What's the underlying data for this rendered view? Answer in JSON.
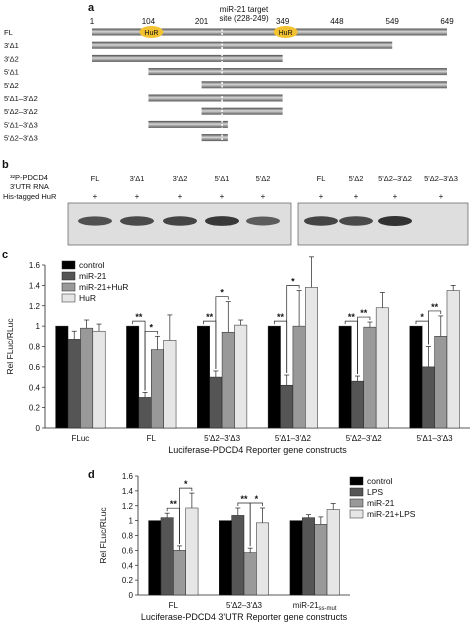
{
  "panel_a": {
    "letter": "a",
    "positions": [
      "1",
      "104",
      "201",
      "349",
      "448",
      "549",
      "649"
    ],
    "mir_label_line1": "miR-21  target",
    "mir_label_line2": "site  (228-249)",
    "hur_label": "HuR",
    "constructs": [
      {
        "name": "FL",
        "start": 1,
        "end": 649
      },
      {
        "name": "3'Δ1",
        "start": 1,
        "end": 549
      },
      {
        "name": "3'Δ2",
        "start": 1,
        "end": 349
      },
      {
        "name": "5'Δ1",
        "start": 104,
        "end": 649
      },
      {
        "name": "5'Δ2",
        "start": 201,
        "end": 649
      },
      {
        "name": "5'Δ1–3'Δ2",
        "start": 104,
        "end": 349
      },
      {
        "name": "5'Δ2–3'Δ2",
        "start": 201,
        "end": 349
      },
      {
        "name": "5'Δ1–3'Δ3",
        "start": 104,
        "end": 249
      },
      {
        "name": "5'Δ2–3'Δ3",
        "start": 201,
        "end": 249
      }
    ],
    "hur_sites": [
      104,
      349
    ],
    "mir_site": [
      228,
      249
    ],
    "colors": {
      "bar_dark": "#5a5a5a",
      "bar_light": "#d8d8d8",
      "hur": "#f2c230"
    }
  },
  "panel_b": {
    "letter": "b",
    "probe_line1": "³²P-PDCD4",
    "probe_line2": "3'UTR  RNA",
    "his_label": "His-tagged HuR",
    "lanes_left": [
      "FL",
      "3'Δ1",
      "3'Δ2",
      "5'Δ1",
      "5'Δ2"
    ],
    "lanes_right": [
      "FL",
      "5'Δ2",
      "5'Δ2–3'Δ2",
      "5'Δ2–3'Δ3"
    ],
    "plus": "+",
    "band_intensity_left": [
      0.75,
      0.8,
      0.85,
      0.95,
      0.65
    ],
    "band_intensity_right": [
      0.85,
      0.8,
      1.0,
      0.0
    ]
  },
  "chart_data": [
    {
      "type": "bar",
      "panel": "c",
      "ylabel": "Rel FLuc/RLuc",
      "xlabel": "Luciferase-PDCD4 Reporter gene constructs",
      "ylim": [
        0,
        1.6
      ],
      "yticks": [
        "0",
        "0.2",
        "0.4",
        "0.6",
        "0.8",
        "1",
        "1.2",
        "1.4",
        "1.6"
      ],
      "legend_position": "top-left",
      "categories": [
        "FLuc",
        "FL",
        "5'Δ2–3'Δ3",
        "5'Δ1–3'Δ2",
        "5'Δ2–3'Δ2",
        "5'Δ1–3'Δ3"
      ],
      "series": [
        {
          "name": "control",
          "color": "#000000",
          "values": [
            1.0,
            1.0,
            1.0,
            1.0,
            1.0,
            1.0
          ],
          "err": [
            0,
            0,
            0,
            0,
            0,
            0
          ]
        },
        {
          "name": "miR-21",
          "color": "#555555",
          "values": [
            0.87,
            0.3,
            0.5,
            0.42,
            0.46,
            0.6
          ],
          "err": [
            0.08,
            0.05,
            0.06,
            0.1,
            0.05,
            0.2
          ]
        },
        {
          "name": "miR-21+HuR",
          "color": "#999999",
          "values": [
            0.98,
            0.77,
            0.94,
            1.0,
            0.99,
            0.9
          ],
          "err": [
            0.08,
            0.13,
            0.3,
            0.35,
            0.05,
            0.2
          ]
        },
        {
          "name": "HuR",
          "color": "#e6e6e6",
          "values": [
            0.95,
            0.86,
            1.01,
            1.38,
            1.18,
            1.35
          ],
          "err": [
            0.07,
            0.25,
            0.05,
            0.3,
            0.15,
            0.05
          ]
        }
      ],
      "significance": [
        {
          "group": 1,
          "from": 0,
          "to": 1,
          "label": "**"
        },
        {
          "group": 1,
          "from": 1,
          "to": 2,
          "label": "*"
        },
        {
          "group": 2,
          "from": 0,
          "to": 1,
          "label": "**"
        },
        {
          "group": 2,
          "from": 1,
          "to": 2,
          "label": "*"
        },
        {
          "group": 3,
          "from": 0,
          "to": 1,
          "label": "**"
        },
        {
          "group": 3,
          "from": 1,
          "to": 2,
          "label": "*"
        },
        {
          "group": 4,
          "from": 0,
          "to": 1,
          "label": "**"
        },
        {
          "group": 4,
          "from": 1,
          "to": 2,
          "label": "**"
        },
        {
          "group": 5,
          "from": 0,
          "to": 1,
          "label": "*"
        },
        {
          "group": 5,
          "from": 1,
          "to": 2,
          "label": "**"
        }
      ]
    },
    {
      "type": "bar",
      "panel": "d",
      "ylabel": "Rel FLuc/RLuc",
      "xlabel": "Luciferase-PDCD4 3'UTR Reporter gene constructs",
      "ylim": [
        0,
        1.6
      ],
      "yticks": [
        "0",
        "0.2",
        "0.4",
        "0.6",
        "0.8",
        "1",
        "1.2",
        "1.4",
        "1.6"
      ],
      "legend_position": "top-right",
      "categories": [
        "FL",
        "5'Δ2–3'Δ3",
        "miR-21"
      ],
      "category_subscripts": [
        "",
        "",
        "ss-mut"
      ],
      "series": [
        {
          "name": "control",
          "color": "#000000",
          "values": [
            1.0,
            1.0,
            1.0
          ],
          "err": [
            0,
            0,
            0
          ]
        },
        {
          "name": "LPS",
          "color": "#555555",
          "values": [
            1.04,
            1.07,
            1.04
          ],
          "err": [
            0.06,
            0.1,
            0.04
          ]
        },
        {
          "name": "miR-21",
          "color": "#999999",
          "values": [
            0.6,
            0.57,
            0.95
          ],
          "err": [
            0.06,
            0.06,
            0.1
          ]
        },
        {
          "name": "miR-21+LPS",
          "color": "#e6e6e6",
          "values": [
            1.17,
            0.97,
            1.15
          ],
          "err": [
            0.2,
            0.2,
            0.08
          ]
        }
      ],
      "significance": [
        {
          "group": 0,
          "from": 1,
          "to": 2,
          "label": "**"
        },
        {
          "group": 0,
          "from": 2,
          "to": 3,
          "label": "*"
        },
        {
          "group": 1,
          "from": 1,
          "to": 2,
          "label": "**"
        },
        {
          "group": 1,
          "from": 2,
          "to": 3,
          "label": "*"
        }
      ]
    }
  ]
}
